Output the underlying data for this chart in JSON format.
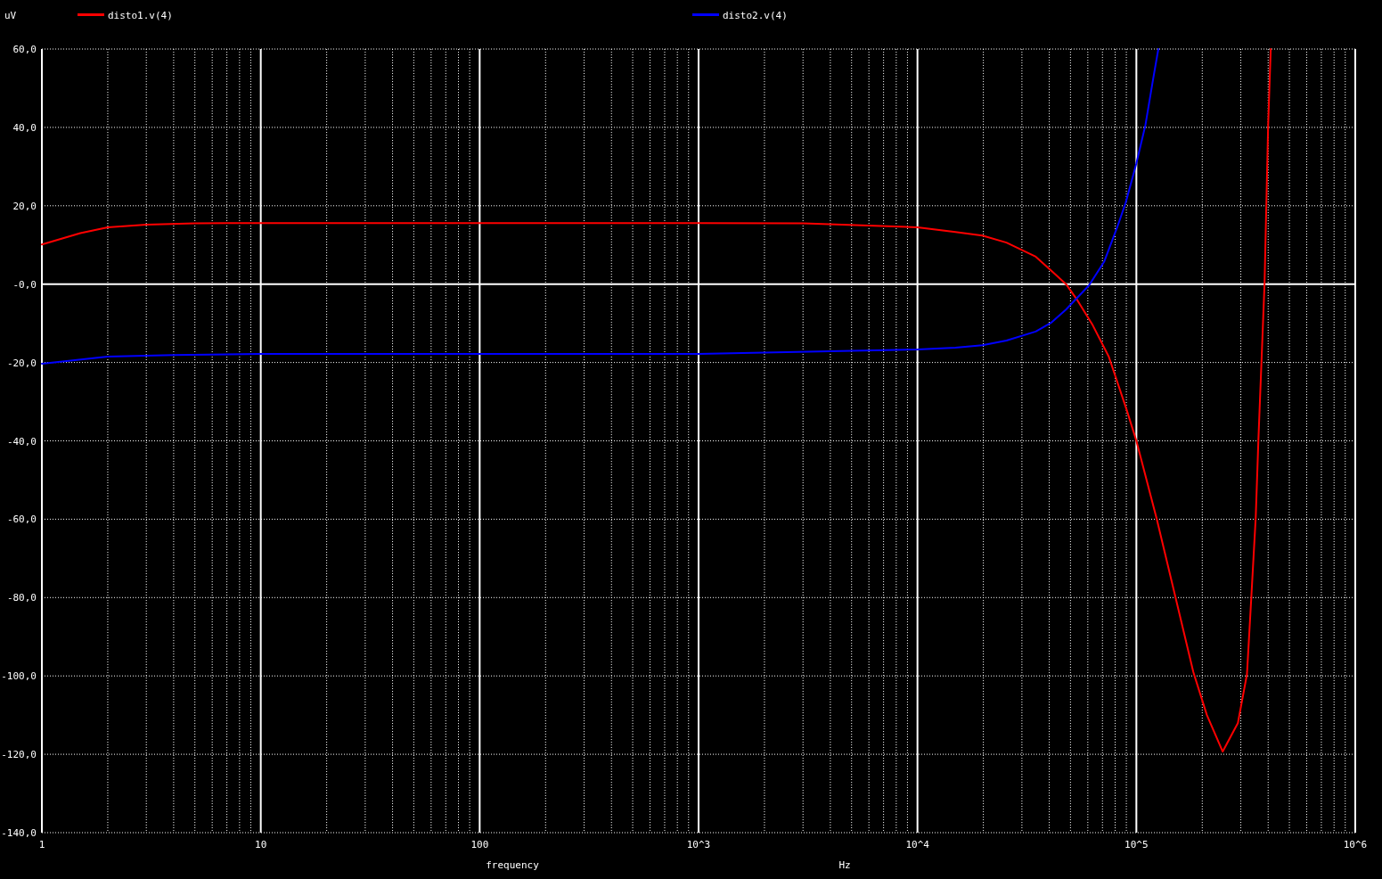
{
  "chart_data": {
    "type": "line",
    "ylabel": "uV",
    "xlabel": "frequency",
    "annotations": [
      "Hz"
    ],
    "log": "x",
    "grid": true,
    "legend": "top",
    "marker": "none",
    "line_style": "solid",
    "xlim": [
      1,
      1000000
    ],
    "xticks": [
      1,
      10,
      100,
      {
        "value": 1000,
        "label": "10^3"
      },
      {
        "value": 10000,
        "label": "10^4"
      },
      {
        "value": 100000,
        "label": "10^5"
      },
      {
        "value": 1000000,
        "label": "10^6"
      }
    ],
    "ylim": [
      -140,
      60
    ],
    "yticks": [
      {
        "value": -140,
        "label": "-140,0"
      },
      {
        "value": -120,
        "label": "-120,0"
      },
      {
        "value": -100,
        "label": "-100,0"
      },
      {
        "value": -80,
        "label": "-80,0"
      },
      {
        "value": -60,
        "label": "-60,0"
      },
      {
        "value": -40,
        "label": "-40,0"
      },
      {
        "value": -20,
        "label": "-20,0"
      },
      {
        "value": 0,
        "label": "-0,0"
      },
      {
        "value": 20,
        "label": "20,0"
      },
      {
        "value": 40,
        "label": "40,0"
      },
      {
        "value": 60,
        "label": "60,0"
      }
    ],
    "series": [
      {
        "name": "disto1.v(4)",
        "color": "#ff0000",
        "x": [
          1,
          1.5,
          2,
          3,
          5,
          10,
          100,
          1000,
          3000,
          10000,
          14900,
          19800,
          25500,
          34700,
          40700,
          47700,
          53900,
          63200,
          74800,
          90200,
          100000,
          124000,
          151000,
          182000,
          210000,
          248000,
          291000,
          320000,
          335000,
          351000,
          361000,
          385000,
          400000,
          411000
        ],
        "values": [
          10.1,
          13,
          14.5,
          15.2,
          15.5,
          15.6,
          15.6,
          15.6,
          15.5,
          14.5,
          13.3,
          12.4,
          10.6,
          7,
          3.5,
          0,
          -4.2,
          -10.5,
          -18.5,
          -32,
          -40,
          -60,
          -80,
          -99,
          -110,
          -119.3,
          -112,
          -99.6,
          -80,
          -59.5,
          -39.7,
          0,
          40.6,
          60
        ]
      },
      {
        "name": "disto2.v(4)",
        "color": "#0000ff",
        "x": [
          1,
          2,
          4,
          10,
          100,
          1000,
          10000,
          14900,
          19800,
          25500,
          34700,
          40700,
          47700,
          60800,
          71400,
          82200,
          89400,
          100000,
          110000,
          119000,
          126000
        ],
        "values": [
          -20.3,
          -18.5,
          -18.1,
          -17.8,
          -17.8,
          -17.8,
          -16.7,
          -16.2,
          -15.6,
          -14.4,
          -12.1,
          -9.9,
          -6.5,
          -0.3,
          5.8,
          14.9,
          20.8,
          30.8,
          40.6,
          52,
          60
        ]
      }
    ]
  }
}
